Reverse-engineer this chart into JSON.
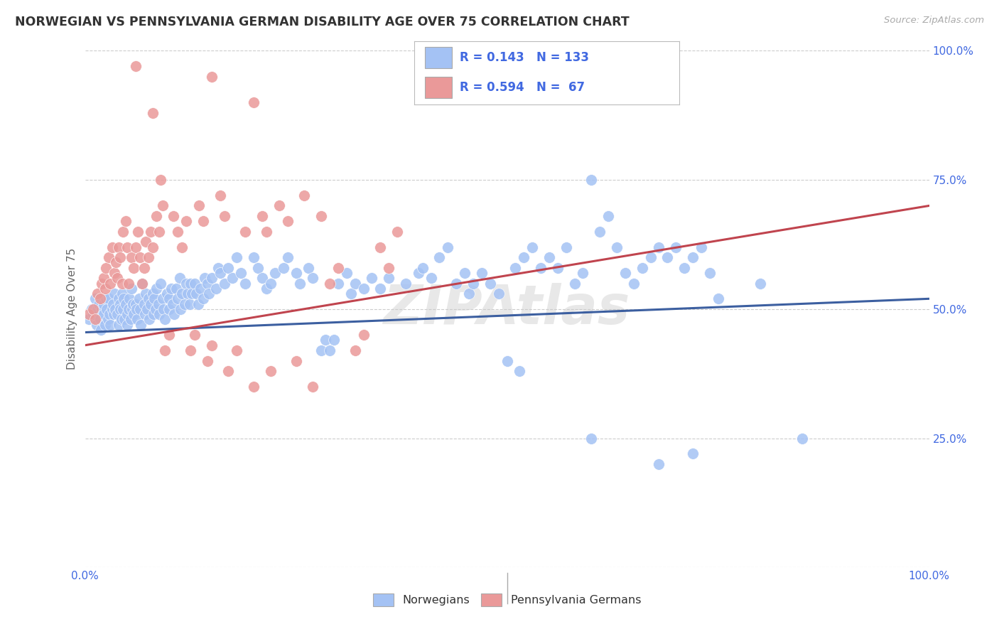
{
  "title": "NORWEGIAN VS PENNSYLVANIA GERMAN DISABILITY AGE OVER 75 CORRELATION CHART",
  "source": "Source: ZipAtlas.com",
  "ylabel": "Disability Age Over 75",
  "watermark": "ZIPAtlas",
  "xlim": [
    0,
    1.0
  ],
  "ylim": [
    0,
    1.0
  ],
  "blue_color": "#a4c2f4",
  "pink_color": "#ea9999",
  "blue_line_color": "#3c5fa0",
  "pink_line_color": "#c0444e",
  "legend_R_blue": "0.143",
  "legend_N_blue": "133",
  "legend_R_pink": "0.594",
  "legend_N_pink": " 67",
  "legend_label_blue": "Norwegians",
  "legend_label_pink": "Pennsylvania Germans",
  "blue_intercept": 0.455,
  "blue_slope": 0.065,
  "pink_intercept": 0.43,
  "pink_slope": 0.27,
  "background_color": "#ffffff",
  "grid_color": "#cccccc",
  "title_color": "#333333",
  "right_axis_color": "#4169e1",
  "tick_label_color": "#4169e1",
  "blue_scatter": [
    [
      0.005,
      0.48
    ],
    [
      0.008,
      0.5
    ],
    [
      0.01,
      0.49
    ],
    [
      0.012,
      0.52
    ],
    [
      0.014,
      0.47
    ],
    [
      0.015,
      0.5
    ],
    [
      0.016,
      0.51
    ],
    [
      0.018,
      0.48
    ],
    [
      0.019,
      0.46
    ],
    [
      0.02,
      0.5
    ],
    [
      0.022,
      0.51
    ],
    [
      0.022,
      0.49
    ],
    [
      0.024,
      0.47
    ],
    [
      0.025,
      0.52
    ],
    [
      0.026,
      0.5
    ],
    [
      0.027,
      0.48
    ],
    [
      0.028,
      0.52
    ],
    [
      0.029,
      0.49
    ],
    [
      0.03,
      0.47
    ],
    [
      0.032,
      0.5
    ],
    [
      0.033,
      0.51
    ],
    [
      0.034,
      0.49
    ],
    [
      0.035,
      0.53
    ],
    [
      0.036,
      0.5
    ],
    [
      0.038,
      0.49
    ],
    [
      0.04,
      0.52
    ],
    [
      0.04,
      0.47
    ],
    [
      0.042,
      0.51
    ],
    [
      0.042,
      0.5
    ],
    [
      0.043,
      0.48
    ],
    [
      0.044,
      0.53
    ],
    [
      0.045,
      0.5
    ],
    [
      0.046,
      0.52
    ],
    [
      0.047,
      0.48
    ],
    [
      0.048,
      0.51
    ],
    [
      0.05,
      0.49
    ],
    [
      0.05,
      0.47
    ],
    [
      0.052,
      0.5
    ],
    [
      0.053,
      0.52
    ],
    [
      0.054,
      0.48
    ],
    [
      0.055,
      0.54
    ],
    [
      0.056,
      0.5
    ],
    [
      0.057,
      0.51
    ],
    [
      0.058,
      0.49
    ],
    [
      0.06,
      0.51
    ],
    [
      0.061,
      0.5
    ],
    [
      0.062,
      0.48
    ],
    [
      0.064,
      0.52
    ],
    [
      0.065,
      0.5
    ],
    [
      0.066,
      0.47
    ],
    [
      0.068,
      0.55
    ],
    [
      0.07,
      0.51
    ],
    [
      0.071,
      0.49
    ],
    [
      0.072,
      0.53
    ],
    [
      0.074,
      0.5
    ],
    [
      0.075,
      0.52
    ],
    [
      0.076,
      0.48
    ],
    [
      0.078,
      0.51
    ],
    [
      0.08,
      0.53
    ],
    [
      0.081,
      0.49
    ],
    [
      0.082,
      0.52
    ],
    [
      0.084,
      0.5
    ],
    [
      0.085,
      0.54
    ],
    [
      0.087,
      0.51
    ],
    [
      0.088,
      0.49
    ],
    [
      0.09,
      0.55
    ],
    [
      0.092,
      0.52
    ],
    [
      0.093,
      0.5
    ],
    [
      0.095,
      0.48
    ],
    [
      0.097,
      0.53
    ],
    [
      0.1,
      0.52
    ],
    [
      0.1,
      0.5
    ],
    [
      0.102,
      0.54
    ],
    [
      0.104,
      0.51
    ],
    [
      0.106,
      0.49
    ],
    [
      0.108,
      0.54
    ],
    [
      0.11,
      0.52
    ],
    [
      0.112,
      0.56
    ],
    [
      0.113,
      0.5
    ],
    [
      0.115,
      0.53
    ],
    [
      0.118,
      0.51
    ],
    [
      0.12,
      0.55
    ],
    [
      0.122,
      0.53
    ],
    [
      0.124,
      0.51
    ],
    [
      0.125,
      0.55
    ],
    [
      0.127,
      0.53
    ],
    [
      0.13,
      0.55
    ],
    [
      0.132,
      0.53
    ],
    [
      0.134,
      0.51
    ],
    [
      0.137,
      0.54
    ],
    [
      0.14,
      0.52
    ],
    [
      0.142,
      0.56
    ],
    [
      0.145,
      0.55
    ],
    [
      0.147,
      0.53
    ],
    [
      0.15,
      0.56
    ],
    [
      0.155,
      0.54
    ],
    [
      0.158,
      0.58
    ],
    [
      0.16,
      0.57
    ],
    [
      0.165,
      0.55
    ],
    [
      0.17,
      0.58
    ],
    [
      0.175,
      0.56
    ],
    [
      0.18,
      0.6
    ],
    [
      0.185,
      0.57
    ],
    [
      0.19,
      0.55
    ],
    [
      0.2,
      0.6
    ],
    [
      0.205,
      0.58
    ],
    [
      0.21,
      0.56
    ],
    [
      0.215,
      0.54
    ],
    [
      0.22,
      0.55
    ],
    [
      0.225,
      0.57
    ],
    [
      0.235,
      0.58
    ],
    [
      0.24,
      0.6
    ],
    [
      0.25,
      0.57
    ],
    [
      0.255,
      0.55
    ],
    [
      0.265,
      0.58
    ],
    [
      0.27,
      0.56
    ],
    [
      0.28,
      0.42
    ],
    [
      0.285,
      0.44
    ],
    [
      0.29,
      0.42
    ],
    [
      0.295,
      0.44
    ],
    [
      0.3,
      0.55
    ],
    [
      0.31,
      0.57
    ],
    [
      0.315,
      0.53
    ],
    [
      0.32,
      0.55
    ],
    [
      0.33,
      0.54
    ],
    [
      0.34,
      0.56
    ],
    [
      0.35,
      0.54
    ],
    [
      0.36,
      0.56
    ],
    [
      0.38,
      0.55
    ],
    [
      0.395,
      0.57
    ],
    [
      0.4,
      0.58
    ],
    [
      0.41,
      0.56
    ],
    [
      0.42,
      0.6
    ],
    [
      0.43,
      0.62
    ],
    [
      0.44,
      0.55
    ],
    [
      0.45,
      0.57
    ],
    [
      0.455,
      0.53
    ],
    [
      0.46,
      0.55
    ],
    [
      0.47,
      0.57
    ],
    [
      0.48,
      0.55
    ],
    [
      0.49,
      0.53
    ],
    [
      0.5,
      0.4
    ],
    [
      0.51,
      0.58
    ],
    [
      0.515,
      0.38
    ],
    [
      0.52,
      0.6
    ],
    [
      0.53,
      0.62
    ],
    [
      0.54,
      0.58
    ],
    [
      0.55,
      0.6
    ],
    [
      0.56,
      0.58
    ],
    [
      0.57,
      0.62
    ],
    [
      0.58,
      0.55
    ],
    [
      0.59,
      0.57
    ],
    [
      0.6,
      0.75
    ],
    [
      0.61,
      0.65
    ],
    [
      0.62,
      0.68
    ],
    [
      0.63,
      0.62
    ],
    [
      0.64,
      0.57
    ],
    [
      0.65,
      0.55
    ],
    [
      0.66,
      0.58
    ],
    [
      0.67,
      0.6
    ],
    [
      0.68,
      0.62
    ],
    [
      0.69,
      0.6
    ],
    [
      0.7,
      0.62
    ],
    [
      0.71,
      0.58
    ],
    [
      0.72,
      0.6
    ],
    [
      0.73,
      0.62
    ],
    [
      0.74,
      0.57
    ],
    [
      0.75,
      0.52
    ],
    [
      0.8,
      0.55
    ],
    [
      0.6,
      0.25
    ],
    [
      0.68,
      0.2
    ],
    [
      0.72,
      0.22
    ],
    [
      0.85,
      0.25
    ]
  ],
  "pink_scatter": [
    [
      0.005,
      0.49
    ],
    [
      0.01,
      0.5
    ],
    [
      0.012,
      0.48
    ],
    [
      0.015,
      0.53
    ],
    [
      0.018,
      0.52
    ],
    [
      0.02,
      0.55
    ],
    [
      0.022,
      0.56
    ],
    [
      0.024,
      0.54
    ],
    [
      0.025,
      0.58
    ],
    [
      0.028,
      0.6
    ],
    [
      0.03,
      0.55
    ],
    [
      0.032,
      0.62
    ],
    [
      0.035,
      0.57
    ],
    [
      0.037,
      0.59
    ],
    [
      0.038,
      0.56
    ],
    [
      0.04,
      0.62
    ],
    [
      0.042,
      0.6
    ],
    [
      0.044,
      0.55
    ],
    [
      0.045,
      0.65
    ],
    [
      0.048,
      0.67
    ],
    [
      0.05,
      0.62
    ],
    [
      0.052,
      0.55
    ],
    [
      0.055,
      0.6
    ],
    [
      0.058,
      0.58
    ],
    [
      0.06,
      0.62
    ],
    [
      0.063,
      0.65
    ],
    [
      0.065,
      0.6
    ],
    [
      0.068,
      0.55
    ],
    [
      0.07,
      0.58
    ],
    [
      0.072,
      0.63
    ],
    [
      0.075,
      0.6
    ],
    [
      0.078,
      0.65
    ],
    [
      0.08,
      0.62
    ],
    [
      0.085,
      0.68
    ],
    [
      0.088,
      0.65
    ],
    [
      0.09,
      0.75
    ],
    [
      0.092,
      0.7
    ],
    [
      0.095,
      0.42
    ],
    [
      0.1,
      0.45
    ],
    [
      0.105,
      0.68
    ],
    [
      0.11,
      0.65
    ],
    [
      0.115,
      0.62
    ],
    [
      0.12,
      0.67
    ],
    [
      0.125,
      0.42
    ],
    [
      0.13,
      0.45
    ],
    [
      0.135,
      0.7
    ],
    [
      0.14,
      0.67
    ],
    [
      0.145,
      0.4
    ],
    [
      0.15,
      0.43
    ],
    [
      0.16,
      0.72
    ],
    [
      0.165,
      0.68
    ],
    [
      0.17,
      0.38
    ],
    [
      0.18,
      0.42
    ],
    [
      0.19,
      0.65
    ],
    [
      0.2,
      0.35
    ],
    [
      0.21,
      0.68
    ],
    [
      0.215,
      0.65
    ],
    [
      0.22,
      0.38
    ],
    [
      0.23,
      0.7
    ],
    [
      0.24,
      0.67
    ],
    [
      0.25,
      0.4
    ],
    [
      0.26,
      0.72
    ],
    [
      0.27,
      0.35
    ],
    [
      0.28,
      0.68
    ],
    [
      0.29,
      0.55
    ],
    [
      0.3,
      0.58
    ],
    [
      0.32,
      0.42
    ],
    [
      0.33,
      0.45
    ],
    [
      0.35,
      0.62
    ],
    [
      0.36,
      0.58
    ],
    [
      0.37,
      0.65
    ],
    [
      0.15,
      0.95
    ],
    [
      0.2,
      0.9
    ],
    [
      0.06,
      0.97
    ],
    [
      0.08,
      0.88
    ]
  ]
}
